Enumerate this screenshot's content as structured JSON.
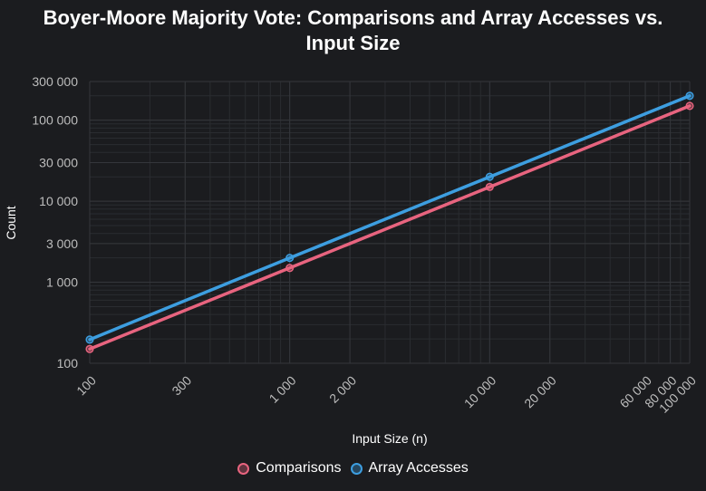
{
  "chart_data": {
    "type": "line",
    "title_lines": [
      "Boyer-Moore Majority Vote: Comparisons and Array Accesses vs.",
      "Input Size"
    ],
    "xlabel": "Input Size (n)",
    "ylabel": "Count",
    "xscale": "log",
    "yscale": "log",
    "xlim": [
      100,
      100000
    ],
    "ylim": [
      100,
      300000
    ],
    "x_ticks": [
      100,
      300,
      1000,
      2000,
      10000,
      20000,
      60000,
      80000,
      100000
    ],
    "x_tick_labels": [
      "100",
      "300",
      "1 000",
      "2 000",
      "10 000",
      "20 000",
      "60 000",
      "80 000",
      "100 000"
    ],
    "y_ticks": [
      100,
      1000,
      3000,
      10000,
      30000,
      100000,
      300000
    ],
    "y_tick_labels": [
      "100",
      "1 000",
      "3 000",
      "10 000",
      "30 000",
      "100 000",
      "300 000"
    ],
    "grid": true,
    "legend_position": "bottom",
    "series": [
      {
        "name": "Comparisons",
        "color": "#e8647f",
        "x": [
          100,
          1000,
          10000,
          100000
        ],
        "y": [
          150,
          1500,
          15000,
          150000
        ]
      },
      {
        "name": "Array Accesses",
        "color": "#3d9ee0",
        "x": [
          100,
          1000,
          10000,
          100000
        ],
        "y": [
          196,
          1996,
          19996,
          199996
        ]
      }
    ]
  }
}
